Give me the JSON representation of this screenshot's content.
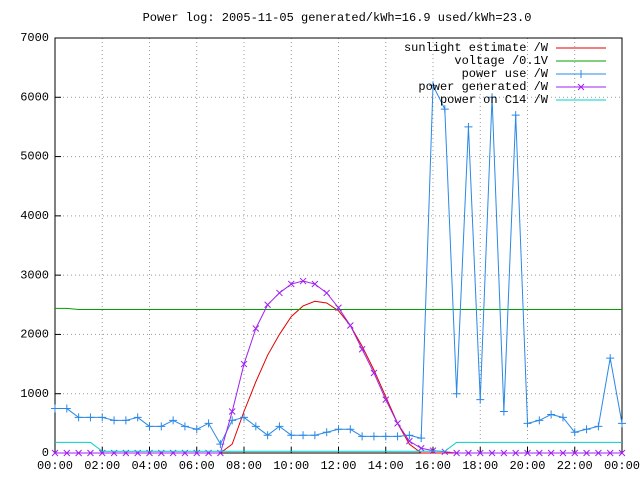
{
  "chart_data": {
    "type": "line",
    "title": "Power log: 2005-11-05 generated/kWh=16.9 used/kWh=23.0",
    "x": [
      0,
      0.5,
      1,
      1.5,
      2,
      2.5,
      3,
      3.5,
      4,
      4.5,
      5,
      5.5,
      6,
      6.5,
      7,
      7.5,
      8,
      8.5,
      9,
      9.5,
      10,
      10.5,
      11,
      11.5,
      12,
      12.5,
      13,
      13.5,
      14,
      14.5,
      15,
      15.5,
      16,
      16.5,
      17,
      17.5,
      18,
      18.5,
      19,
      19.5,
      20,
      20.5,
      21,
      21.5,
      22,
      22.5,
      23,
      23.5,
      24
    ],
    "xlim": [
      0,
      24
    ],
    "xticks": [
      {
        "value": 0,
        "label": "00:00"
      },
      {
        "value": 2,
        "label": "02:00"
      },
      {
        "value": 4,
        "label": "04:00"
      },
      {
        "value": 6,
        "label": "06:00"
      },
      {
        "value": 8,
        "label": "08:00"
      },
      {
        "value": 10,
        "label": "10:00"
      },
      {
        "value": 12,
        "label": "12:00"
      },
      {
        "value": 14,
        "label": "14:00"
      },
      {
        "value": 16,
        "label": "16:00"
      },
      {
        "value": 18,
        "label": "18:00"
      },
      {
        "value": 20,
        "label": "20:00"
      },
      {
        "value": 22,
        "label": "22:00"
      },
      {
        "value": 24,
        "label": "00:00"
      }
    ],
    "ylim": [
      0,
      7000
    ],
    "yticks": [
      0,
      1000,
      2000,
      3000,
      4000,
      5000,
      6000,
      7000
    ],
    "grid": true,
    "legend": "top-right",
    "series": [
      {
        "name": "sunlight estimate /W",
        "color": "#e00000",
        "values": [
          0,
          0,
          0,
          0,
          0,
          0,
          0,
          0,
          0,
          0,
          0,
          0,
          0,
          0,
          0,
          150,
          700,
          1200,
          1650,
          2000,
          2300,
          2480,
          2560,
          2530,
          2400,
          2150,
          1800,
          1400,
          950,
          500,
          150,
          0,
          0,
          0,
          0,
          0,
          0,
          0,
          0,
          0,
          0,
          0,
          0,
          0,
          0,
          0,
          0,
          0,
          0
        ]
      },
      {
        "name": "voltage /0.1V",
        "color": "#00a000",
        "values": [
          2440,
          2440,
          2420,
          2420,
          2420,
          2420,
          2420,
          2420,
          2420,
          2420,
          2420,
          2420,
          2420,
          2420,
          2420,
          2420,
          2420,
          2420,
          2420,
          2420,
          2420,
          2420,
          2420,
          2420,
          2420,
          2420,
          2420,
          2420,
          2420,
          2420,
          2420,
          2420,
          2420,
          2420,
          2420,
          2420,
          2420,
          2420,
          2420,
          2420,
          2420,
          2420,
          2420,
          2420,
          2420,
          2420,
          2420,
          2420,
          2420
        ]
      },
      {
        "name": "power use /W",
        "color": "#2a88e6",
        "marker": "plus",
        "values": [
          750,
          750,
          600,
          600,
          600,
          550,
          550,
          600,
          450,
          450,
          550,
          450,
          400,
          500,
          150,
          550,
          600,
          450,
          300,
          450,
          300,
          300,
          300,
          350,
          400,
          400,
          280,
          280,
          280,
          280,
          300,
          250,
          6200,
          5800,
          1000,
          5500,
          900,
          6000,
          700,
          5700,
          500,
          550,
          650,
          600,
          350,
          400,
          450,
          1600,
          500
        ]
      },
      {
        "name": "power generated /W",
        "color": "#a020f0",
        "marker": "cross",
        "values": [
          0,
          0,
          0,
          0,
          0,
          0,
          0,
          0,
          0,
          0,
          0,
          0,
          0,
          0,
          0,
          700,
          1500,
          2100,
          2500,
          2700,
          2850,
          2900,
          2850,
          2700,
          2450,
          2150,
          1750,
          1350,
          900,
          500,
          200,
          80,
          40,
          20,
          0,
          0,
          0,
          0,
          0,
          0,
          0,
          0,
          0,
          0,
          0,
          0,
          0,
          0,
          0
        ]
      },
      {
        "name": "power on C14 /W",
        "color": "#00cccc",
        "values": [
          180,
          180,
          180,
          180,
          30,
          30,
          30,
          30,
          30,
          30,
          30,
          30,
          30,
          30,
          30,
          30,
          30,
          30,
          30,
          30,
          30,
          30,
          30,
          30,
          30,
          30,
          30,
          30,
          30,
          30,
          30,
          30,
          30,
          30,
          180,
          180,
          180,
          180,
          180,
          180,
          180,
          180,
          180,
          180,
          180,
          180,
          180,
          180,
          180
        ]
      }
    ]
  }
}
